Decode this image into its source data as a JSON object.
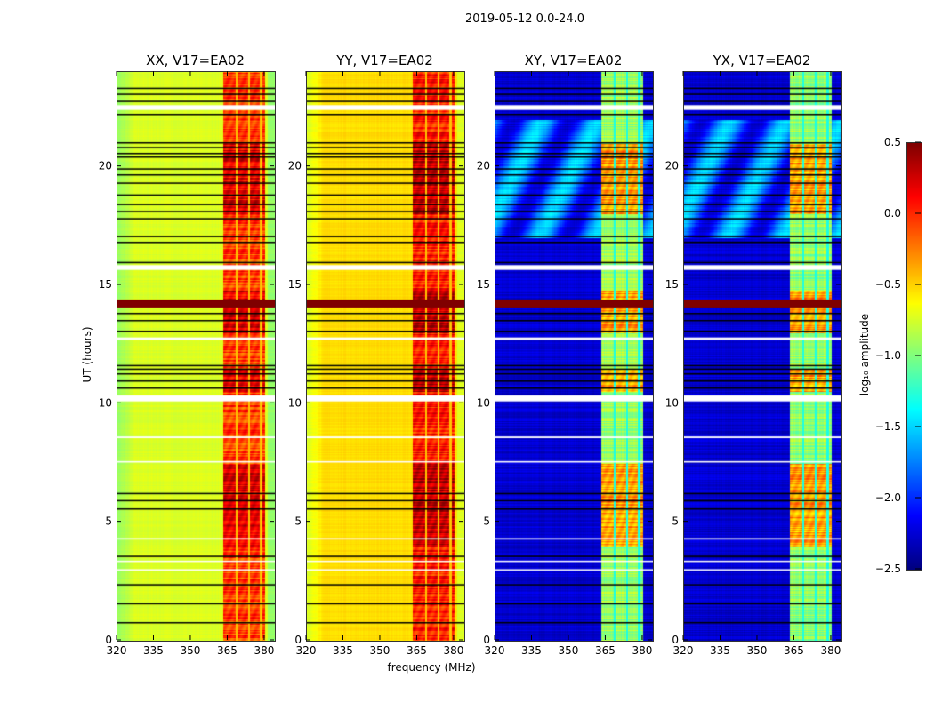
{
  "chart_data": {
    "type": "heatmap",
    "title": "2019-05-12 0.0-24.0",
    "xlabel": "frequency (MHz)",
    "ylabel": "UT (hours)",
    "xlim": [
      320,
      384
    ],
    "ylim": [
      0,
      24
    ],
    "xticks": [
      "320",
      "335",
      "350",
      "365",
      "380"
    ],
    "xtick_values": [
      320,
      335,
      350,
      365,
      380
    ],
    "yticks": [
      "0",
      "5",
      "10",
      "15",
      "20"
    ],
    "ytick_values": [
      0,
      5,
      10,
      15,
      20
    ],
    "panels": [
      {
        "title": "XX, V17=EA02",
        "kind": "parallel",
        "base": -0.75,
        "band": -0.05
      },
      {
        "title": "YY, V17=EA02",
        "kind": "parallel",
        "base": -0.55,
        "band": 0.05
      },
      {
        "title": "XY, V17=EA02",
        "kind": "cross",
        "base": -2.3,
        "band": -0.6
      },
      {
        "title": "YX, V17=EA02",
        "kind": "cross",
        "base": -2.3,
        "band": -0.6
      }
    ],
    "band_range_mhz": [
      363,
      380
    ],
    "flagged_black_hours": [
      23.3,
      23.05,
      22.75,
      22.2,
      21.0,
      20.8,
      20.55,
      20.4,
      19.9,
      19.65,
      19.3,
      18.8,
      18.4,
      18.1,
      17.8,
      17.05,
      16.8,
      15.95,
      13.8,
      13.5,
      13.05,
      11.6,
      11.45,
      11.25,
      10.95,
      10.65,
      6.2,
      5.9,
      5.55,
      3.55,
      2.35,
      1.55,
      0.75
    ],
    "blank_hours": [
      [
        22.4,
        22.6
      ],
      [
        15.65,
        15.85
      ],
      [
        10.1,
        10.35
      ],
      [
        12.7,
        12.8
      ],
      [
        8.55,
        8.62
      ],
      [
        7.52,
        7.58
      ],
      [
        4.27,
        4.33
      ],
      [
        3.33,
        3.38
      ],
      [
        2.97,
        3.02
      ]
    ],
    "saturated_hours": [
      14.1,
      14.4
    ],
    "colorbar": {
      "label": "log₁₀ amplitude",
      "range": [
        -2.5,
        0.5
      ],
      "ticks": [
        "0.5",
        "0.0",
        "−0.5",
        "−1.0",
        "−1.5",
        "−2.0",
        "−2.5"
      ],
      "tick_values": [
        0.5,
        0,
        -0.5,
        -1,
        -1.5,
        -2,
        -2.5
      ],
      "colormap": "jet"
    }
  }
}
